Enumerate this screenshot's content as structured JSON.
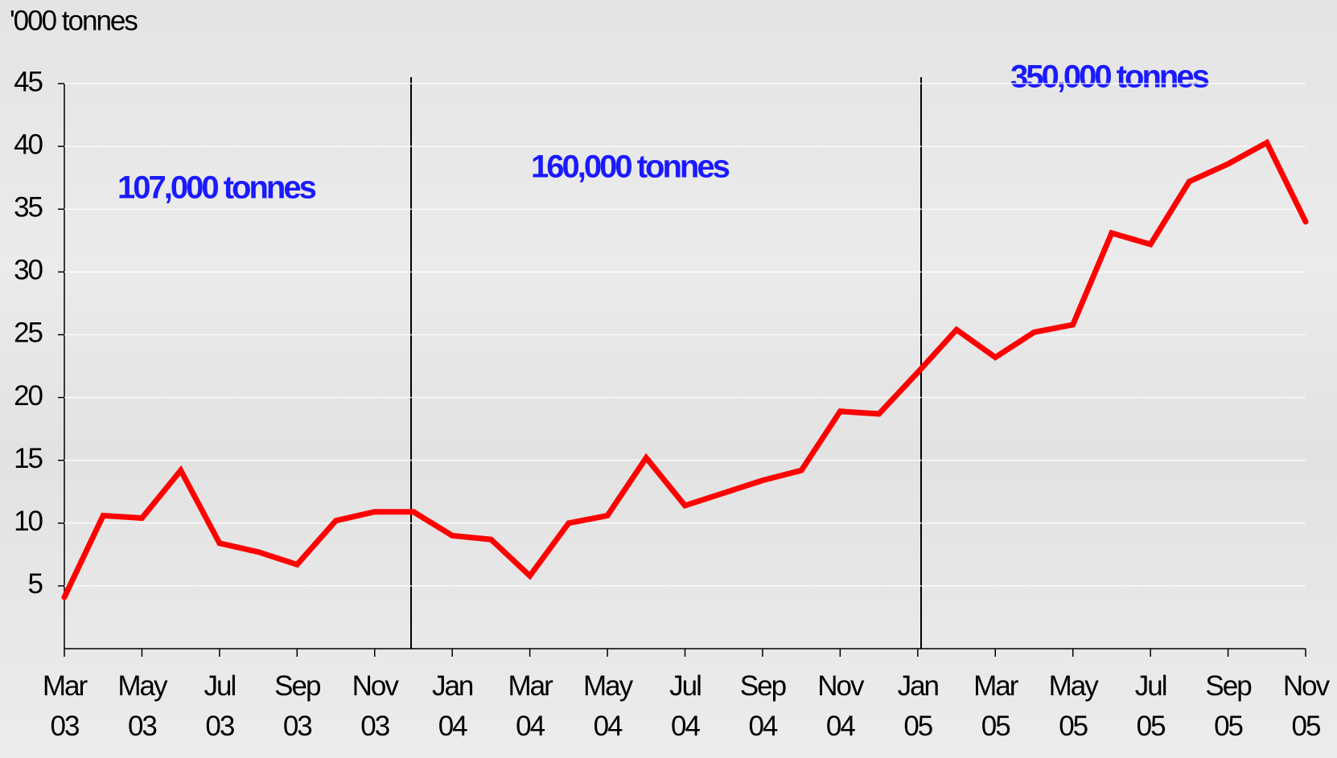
{
  "chart_data": {
    "type": "line",
    "unit_label": "'000 tonnes",
    "annotations": [
      "107,000 tonnes",
      "160,000 tonnes",
      "350,000 tonnes"
    ],
    "categories": [
      "Mar 03",
      null,
      "May 03",
      null,
      "Jul 03",
      null,
      "Sep 03",
      null,
      "Nov 03",
      null,
      "Jan 04",
      null,
      "Mar 04",
      null,
      "May 04",
      null,
      "Jul 04",
      null,
      "Sep 04",
      null,
      "Nov 04",
      null,
      "Jan 05",
      null,
      "Mar 05",
      null,
      "May 05",
      null,
      "Jul 05",
      null,
      "Sep 05",
      null,
      "Nov 05"
    ],
    "values": [
      4.1,
      10.6,
      10.4,
      14.2,
      8.4,
      7.7,
      6.7,
      10.2,
      10.9,
      10.9,
      9.0,
      8.7,
      5.8,
      10.0,
      10.6,
      15.2,
      11.4,
      12.4,
      13.4,
      14.2,
      18.9,
      18.7,
      22.0,
      25.4,
      23.2,
      25.2,
      25.8,
      33.1,
      32.2,
      37.2,
      38.6,
      40.3,
      34.0
    ],
    "color": "#ff0000",
    "ylim": [
      0,
      45
    ],
    "yticks": [
      5,
      10,
      15,
      20,
      25,
      30,
      35,
      40,
      45
    ],
    "grid": true
  }
}
